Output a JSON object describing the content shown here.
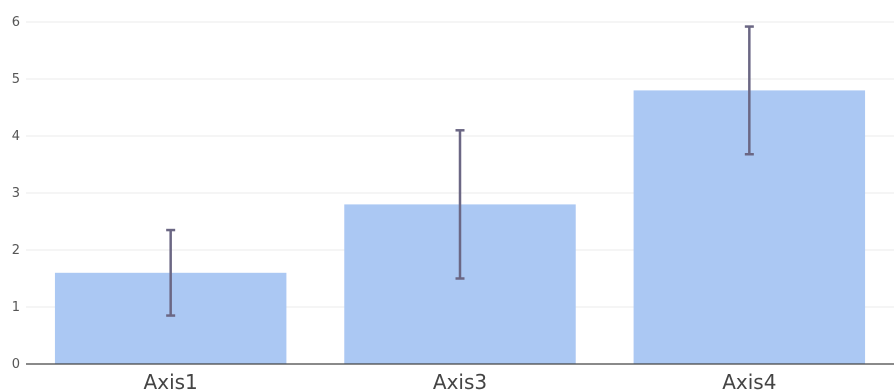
{
  "chart_data": {
    "type": "bar",
    "categories": [
      "Axis1",
      "Axis3",
      "Axis4"
    ],
    "values": [
      1.6,
      2.8,
      4.8
    ],
    "error_low": [
      0.85,
      1.5,
      3.68
    ],
    "error_high": [
      2.35,
      4.1,
      5.92
    ],
    "ylim": [
      0,
      6
    ],
    "yticks": [
      "0",
      "1",
      "2",
      "3",
      "4",
      "5",
      "6"
    ],
    "grid": true,
    "colors": {
      "bar": "#abc8f3",
      "error_bar": "#6b6784",
      "grid": "#ebebeb",
      "axis": "#444444"
    }
  }
}
